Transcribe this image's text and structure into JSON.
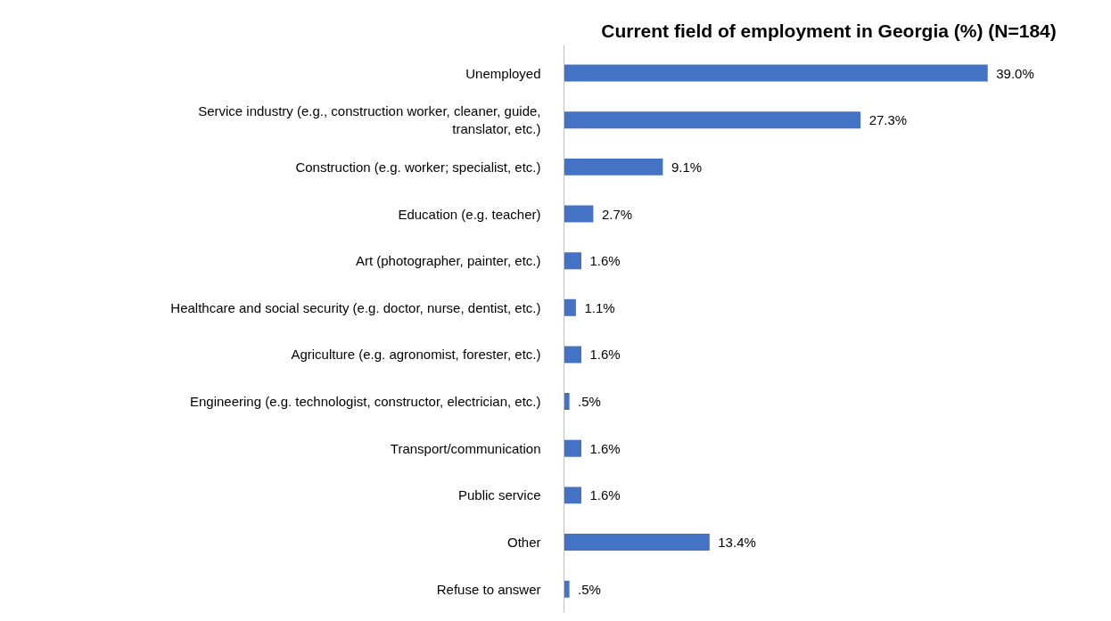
{
  "chart_data": {
    "type": "bar",
    "orientation": "horizontal",
    "title": "Current field of employment in Georgia (%) (N=184)",
    "categories": [
      "Unemployed",
      "Service industry (e.g., construction worker, cleaner, guide, translator, etc.)",
      "Construction (e.g. worker; specialist, etc.)",
      "Education (e.g. teacher)",
      "Art (photographer, painter, etc.)",
      "Healthcare and social security (e.g. doctor, nurse, dentist, etc.)",
      "Agriculture (e.g. agronomist, forester, etc.)",
      "Engineering (e.g. technologist, constructor, electrician, etc.)",
      "Transport/communication",
      "Public service",
      "Other",
      "Refuse to answer"
    ],
    "values": [
      39.0,
      27.3,
      9.1,
      2.7,
      1.6,
      1.1,
      1.6,
      0.5,
      1.6,
      1.6,
      13.4,
      0.5
    ],
    "value_labels": [
      "39.0%",
      "27.3%",
      "9.1%",
      "2.7%",
      "1.6%",
      "1.1%",
      "1.6%",
      ".5%",
      "1.6%",
      "1.6%",
      "13.4%",
      ".5%"
    ],
    "color": "#4472c4",
    "grid": false,
    "tick_labels": "y"
  }
}
